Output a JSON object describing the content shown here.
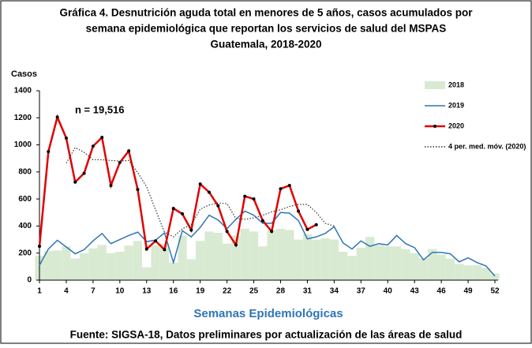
{
  "chart_data": {
    "type": "combo",
    "title": [
      "Gráfica 4. Desnutrición aguda total en menores de 5 años, casos acumulados por",
      "semana epidemiológica que reportan los servicios de salud del MSPAS",
      "Guatemala, 2018-2020"
    ],
    "ylabel": "Casos",
    "xlabel": "Semanas Epidemiológicas",
    "annotation": "n = 19,516",
    "source": "Fuente: SIGSA-18, Datos preliminares por actualización de las áreas de salud",
    "x": [
      1,
      2,
      3,
      4,
      5,
      6,
      7,
      8,
      9,
      10,
      11,
      12,
      13,
      14,
      15,
      16,
      17,
      18,
      19,
      20,
      21,
      22,
      23,
      24,
      25,
      26,
      27,
      28,
      29,
      30,
      31,
      32,
      33,
      34,
      35,
      36,
      37,
      38,
      39,
      40,
      41,
      42,
      43,
      44,
      45,
      46,
      47,
      48,
      49,
      50,
      51,
      52
    ],
    "xlim": [
      1,
      52
    ],
    "xticks": [
      1,
      4,
      7,
      10,
      13,
      16,
      19,
      22,
      25,
      28,
      31,
      34,
      37,
      40,
      43,
      46,
      49,
      52
    ],
    "ylim": [
      0,
      1400
    ],
    "yticks": [
      0,
      200,
      400,
      600,
      800,
      1000,
      1200,
      1400
    ],
    "legend": "upper right",
    "series": [
      {
        "name": "2018",
        "type": "area",
        "color": "#d9ead3",
        "values": [
          180,
          215,
          220,
          250,
          160,
          200,
          235,
          260,
          200,
          210,
          255,
          290,
          95,
          260,
          270,
          130,
          330,
          155,
          290,
          360,
          350,
          270,
          330,
          380,
          360,
          250,
          370,
          380,
          370,
          300,
          340,
          300,
          310,
          300,
          210,
          180,
          240,
          320,
          260,
          250,
          250,
          230,
          200,
          160,
          230,
          190,
          160,
          120,
          110,
          110,
          90,
          50
        ]
      },
      {
        "name": "2019",
        "type": "line",
        "color": "#2e75b6",
        "values": [
          110,
          230,
          295,
          245,
          195,
          225,
          290,
          345,
          270,
          300,
          330,
          355,
          285,
          295,
          350,
          130,
          365,
          320,
          390,
          480,
          445,
          380,
          450,
          510,
          480,
          420,
          420,
          500,
          495,
          440,
          305,
          320,
          345,
          395,
          275,
          230,
          290,
          250,
          270,
          260,
          330,
          270,
          240,
          150,
          205,
          205,
          195,
          135,
          165,
          130,
          105,
          30
        ]
      },
      {
        "name": "2020",
        "type": "line",
        "color": "#e00000",
        "marker": true,
        "values": [
          250,
          950,
          1205,
          1050,
          725,
          790,
          990,
          1055,
          700,
          870,
          955,
          670,
          230,
          290,
          225,
          530,
          490,
          370,
          710,
          650,
          550,
          360,
          260,
          620,
          600,
          440,
          360,
          675,
          700,
          510,
          375,
          410,
          null,
          null,
          null,
          null,
          null,
          null,
          null,
          null,
          null,
          null,
          null,
          null,
          null,
          null,
          null,
          null,
          null,
          null,
          null,
          null
        ]
      },
      {
        "name": "4 per. med. móv. (2020)",
        "type": "line",
        "color": "#333333",
        "dash": "dotted",
        "values": [
          null,
          null,
          null,
          865,
          980,
          945,
          890,
          890,
          885,
          880,
          885,
          795,
          690,
          520,
          355,
          320,
          380,
          410,
          525,
          555,
          570,
          565,
          455,
          450,
          460,
          480,
          505,
          520,
          545,
          560,
          560,
          500,
          420,
          400,
          null,
          null,
          null,
          null,
          null,
          null,
          null,
          null,
          null,
          null,
          null,
          null,
          null,
          null,
          null,
          null,
          null,
          null
        ]
      }
    ]
  }
}
